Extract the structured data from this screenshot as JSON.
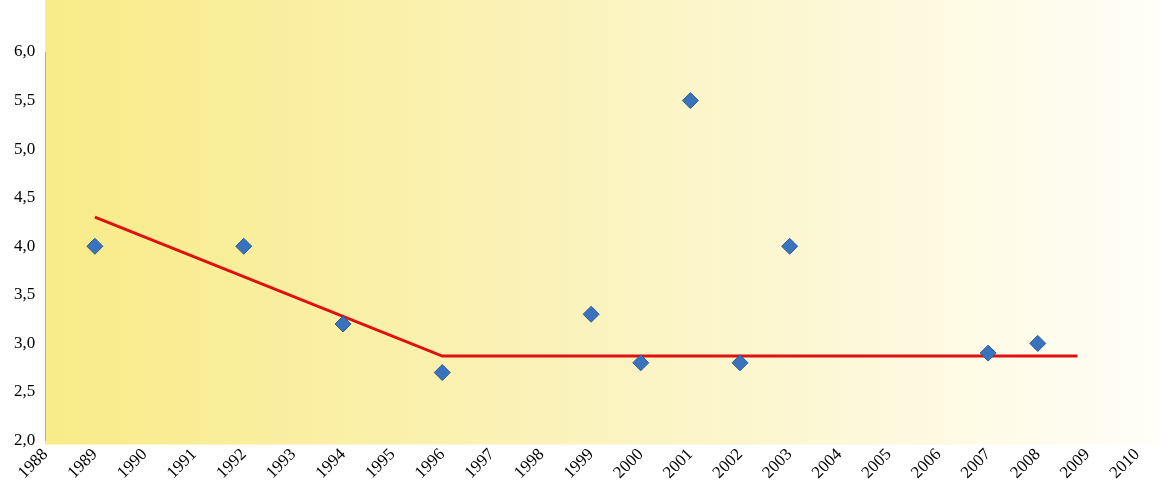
{
  "chart_data": {
    "type": "scatter",
    "series": [
      {
        "type": "scatter",
        "color": "#3a73bd",
        "marker": "diamond",
        "x": [
          1989,
          1992,
          1994,
          1996,
          1999,
          2000,
          2001,
          2002,
          2003,
          2007,
          2008
        ],
        "values": [
          4.0,
          4.0,
          3.2,
          2.7,
          3.3,
          2.8,
          5.5,
          2.8,
          4.0,
          2.9,
          3.0
        ]
      },
      {
        "type": "line",
        "color": "#e01010",
        "marker": "none",
        "line_style": "solid",
        "x": [
          1989,
          1996,
          2008.8
        ],
        "values": [
          4.3,
          2.87,
          2.87
        ]
      }
    ],
    "xlim": [
      1988,
      2010
    ],
    "xticks": [
      1988,
      1989,
      1990,
      1991,
      1992,
      1993,
      1994,
      1995,
      1996,
      1997,
      1998,
      1999,
      2000,
      2001,
      2002,
      2003,
      2004,
      2005,
      2006,
      2007,
      2008,
      2009,
      2010
    ],
    "ylim": [
      2,
      6
    ],
    "yticks": [
      {
        "value": 2,
        "label": "2,0"
      },
      {
        "value": 2.5,
        "label": "2,5"
      },
      {
        "value": 3,
        "label": "3,0"
      },
      {
        "value": 3.5,
        "label": "3,5"
      },
      {
        "value": 4,
        "label": "4,0"
      },
      {
        "value": 4.5,
        "label": "4,5"
      },
      {
        "value": 5,
        "label": "5,0"
      },
      {
        "value": 5.5,
        "label": "5,5"
      },
      {
        "value": 6,
        "label": "6,0"
      }
    ],
    "grid": false
  }
}
